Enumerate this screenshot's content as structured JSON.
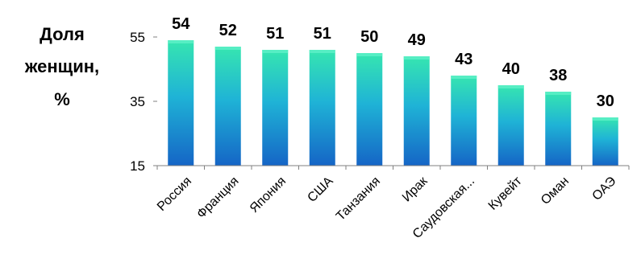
{
  "chart_data": {
    "type": "bar",
    "ylabel_lines": [
      "Доля",
      "женщин,",
      "%"
    ],
    "categories": [
      "Россия",
      "Франция",
      "Япония",
      "США",
      "Танзания",
      "Ирак",
      "Саудовская...",
      "Кувейт",
      "Оман",
      "ОАЭ"
    ],
    "values": [
      54,
      52,
      51,
      51,
      50,
      49,
      43,
      40,
      38,
      30
    ],
    "data_labels": [
      "54",
      "52",
      "51",
      "51",
      "50",
      "49",
      "43",
      "40",
      "38",
      "30"
    ],
    "yticks": [
      "15",
      "35",
      "55"
    ],
    "ytick_values": [
      15,
      35,
      55
    ],
    "ylim": [
      15,
      55
    ],
    "grid": false,
    "legend": "none",
    "colors": {
      "bar_top": "#36e6b0",
      "bar_mid": "#1fb3d6",
      "bar_bottom": "#1565c6",
      "axis": "#808080"
    }
  }
}
